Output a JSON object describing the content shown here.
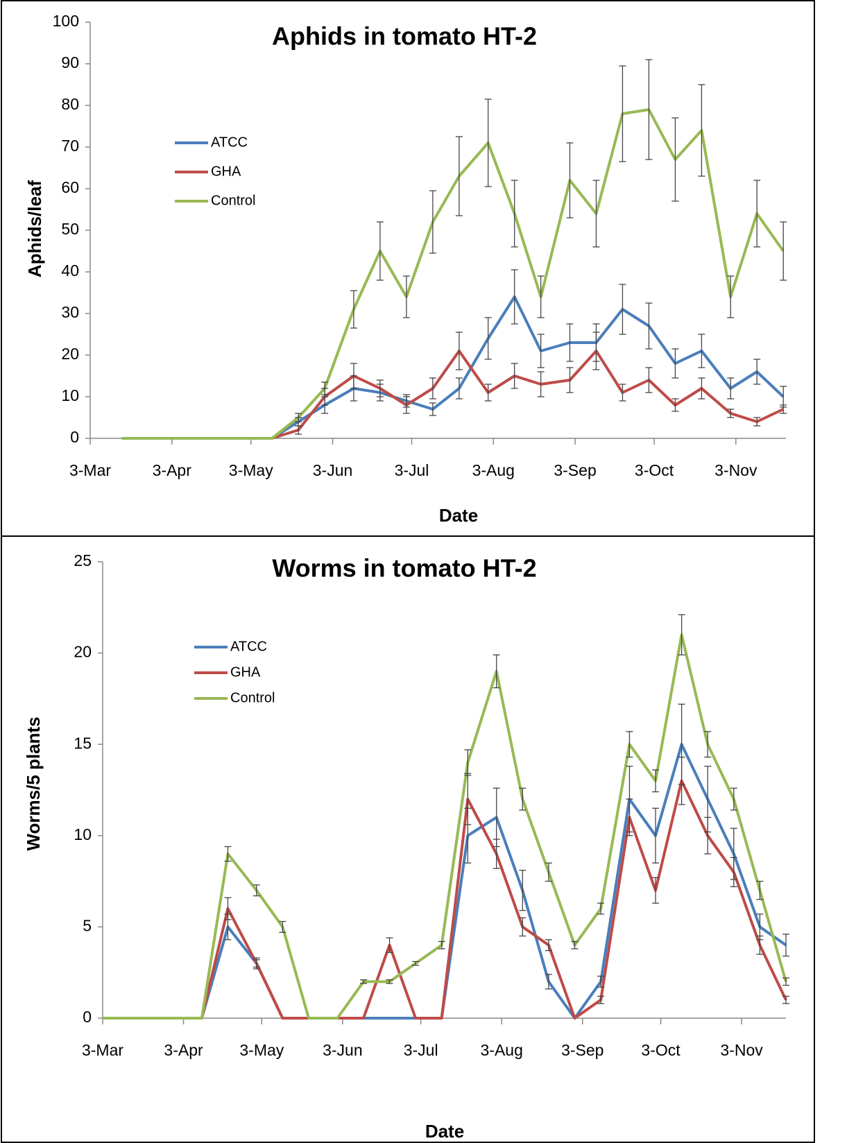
{
  "chart_data": [
    {
      "type": "line",
      "title": "Aphids in tomato HT-2",
      "xlabel": "Date",
      "ylabel": "Aphids/leaf",
      "x": [
        "15-Mar",
        "14-Apr",
        "11-May",
        "21-May",
        "31-May",
        "11-Jun",
        "21-Jun",
        "1-Jul",
        "11-Jul",
        "21-Jul",
        "1-Aug",
        "11-Aug",
        "21-Aug",
        "1-Sep",
        "11-Sep",
        "21-Sep",
        "1-Oct",
        "11-Oct",
        "21-Oct",
        "1-Nov",
        "11-Nov",
        "21-Nov"
      ],
      "xlim": [
        "3-Mar",
        "22-Nov"
      ],
      "xticks": [
        "3-Mar",
        "3-Apr",
        "3-May",
        "3-Jun",
        "3-Jul",
        "3-Aug",
        "3-Sep",
        "3-Oct",
        "3-Nov"
      ],
      "ylim": [
        0,
        100
      ],
      "yticks": [
        0,
        10,
        20,
        30,
        40,
        50,
        60,
        70,
        80,
        90,
        100
      ],
      "legend": "upper left",
      "series": [
        {
          "name": "ATCC",
          "color": "#4a7ebb",
          "values": [
            0,
            0,
            0,
            4,
            8,
            12,
            11,
            9,
            7,
            12,
            24,
            34,
            21,
            23,
            23,
            31,
            27,
            18,
            21,
            12,
            16,
            10
          ],
          "errors": [
            null,
            null,
            null,
            1,
            2,
            3,
            2,
            1.5,
            1.5,
            2.5,
            5,
            6.5,
            4,
            4.5,
            4.5,
            6,
            5.5,
            3.5,
            4,
            2.5,
            3,
            2.5
          ]
        },
        {
          "name": "GHA",
          "color": "#be4b48",
          "values": [
            0,
            0,
            0,
            2,
            10,
            15,
            12,
            8,
            12,
            21,
            11,
            15,
            13,
            14,
            21,
            11,
            14,
            8,
            12,
            6,
            4,
            7
          ],
          "errors": [
            null,
            null,
            null,
            1,
            2,
            3,
            2,
            2,
            2.5,
            4.5,
            2,
            3,
            3,
            3,
            4.5,
            2,
            3,
            1.5,
            2.5,
            1,
            1,
            1
          ]
        },
        {
          "name": "Control",
          "color": "#98b954",
          "values": [
            0,
            0,
            0,
            5,
            12,
            31,
            45,
            34,
            52,
            63,
            71,
            54,
            34,
            62,
            54,
            78,
            79,
            67,
            74,
            34,
            54,
            45
          ],
          "errors": [
            null,
            null,
            null,
            1,
            1.5,
            4.5,
            7,
            5,
            7.5,
            9.5,
            10.5,
            8,
            5,
            9,
            8,
            11.5,
            12,
            10,
            11,
            5,
            8,
            7
          ]
        }
      ]
    },
    {
      "type": "line",
      "title": "Worms in tomato HT-2",
      "xlabel": "Date",
      "ylabel": "Worms/5 plants",
      "x": [
        "3-Mar",
        "22-Mar",
        "10-Apr",
        "20-Apr",
        "1-May",
        "11-May",
        "21-May",
        "1-Jun",
        "11-Jun",
        "21-Jun",
        "1-Jul",
        "11-Jul",
        "21-Jul",
        "1-Aug",
        "11-Aug",
        "21-Aug",
        "31-Aug",
        "10-Sep",
        "21-Sep",
        "1-Oct",
        "11-Oct",
        "21-Oct",
        "31-Oct",
        "10-Nov",
        "20-Nov"
      ],
      "xlim": [
        "3-Mar",
        "20-Nov"
      ],
      "xticks": [
        "3-Mar",
        "3-Apr",
        "3-May",
        "3-Jun",
        "3-Jul",
        "3-Aug",
        "3-Sep",
        "3-Oct",
        "3-Nov"
      ],
      "ylim": [
        0,
        25
      ],
      "yticks": [
        0,
        5,
        10,
        15,
        20,
        25
      ],
      "legend": "upper left",
      "series": [
        {
          "name": "ATCC",
          "color": "#4a7ebb",
          "values": [
            0,
            0,
            0,
            5,
            3,
            0,
            0,
            0,
            0,
            0,
            0,
            0,
            10,
            11,
            7,
            2,
            0,
            2,
            12,
            10,
            15,
            12,
            9,
            5,
            4
          ],
          "errors": [
            null,
            null,
            null,
            0.7,
            0.2,
            null,
            null,
            null,
            null,
            null,
            null,
            null,
            1.5,
            1.6,
            1.1,
            0.4,
            null,
            0.3,
            1.8,
            1.5,
            2.2,
            1.8,
            1.4,
            0.7,
            0.6
          ]
        },
        {
          "name": "GHA",
          "color": "#be4b48",
          "values": [
            0,
            0,
            0,
            6,
            3,
            0,
            0,
            0,
            0,
            4,
            0,
            0,
            12,
            9,
            5,
            4,
            0,
            1,
            11,
            7,
            13,
            10,
            8,
            4,
            1
          ],
          "errors": [
            null,
            null,
            null,
            0.6,
            0.3,
            null,
            null,
            null,
            null,
            0.4,
            null,
            null,
            1.4,
            0.8,
            0.5,
            0.3,
            null,
            0.2,
            1,
            0.7,
            1.3,
            1,
            0.8,
            0.5,
            0.2
          ]
        },
        {
          "name": "Control",
          "color": "#98b954",
          "values": [
            0,
            0,
            0,
            9,
            7,
            5,
            0,
            0,
            2,
            2,
            3,
            4,
            14,
            19,
            12,
            8,
            4,
            6,
            15,
            13,
            21,
            15,
            12,
            7,
            2
          ],
          "errors": [
            null,
            null,
            null,
            0.4,
            0.3,
            0.3,
            null,
            null,
            0.1,
            0.1,
            0.1,
            0.2,
            0.7,
            0.9,
            0.6,
            0.5,
            0.2,
            0.3,
            0.7,
            0.6,
            1.1,
            0.7,
            0.6,
            0.5,
            0.2
          ]
        }
      ]
    }
  ]
}
